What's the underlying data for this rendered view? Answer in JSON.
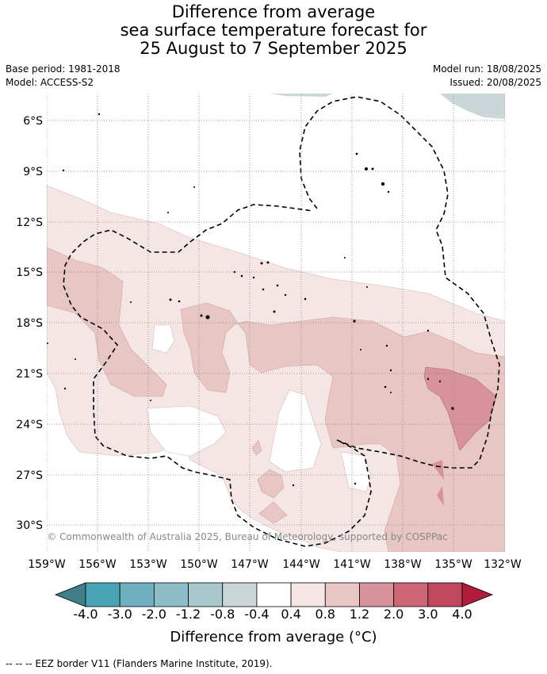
{
  "title_lines": [
    "Difference from average",
    "sea surface temperature forecast for",
    "25 August to 7 September 2025"
  ],
  "base_period": "Base period: 1981-2018",
  "model": "Model: ACCESS-S2",
  "model_run": "Model run: 18/08/2025",
  "issued": "Issued: 20/08/2025",
  "copyright": "© Commonwealth of Australia 2025, Bureau of Meteorology, supported by COSPPac",
  "lat_labels": [
    "6°S",
    "9°S",
    "12°S",
    "15°S",
    "18°S",
    "21°S",
    "24°S",
    "27°S",
    "30°S"
  ],
  "lon_labels": [
    "159°W",
    "156°W",
    "153°W",
    "150°W",
    "147°W",
    "144°W",
    "141°W",
    "138°W",
    "135°W",
    "132°W"
  ],
  "colorbar": {
    "label": "Difference from average (°C)",
    "ticks": [
      "-4.0",
      "-3.0",
      "-2.0",
      "-1.2",
      "-0.8",
      "-0.4",
      "0.4",
      "0.8",
      "1.2",
      "2.0",
      "3.0",
      "4.0"
    ],
    "colors": [
      "#3e7f8b",
      "#4aa3b5",
      "#6fb0bf",
      "#8dbdc8",
      "#a9c8cd",
      "#cbd6d8",
      "#ffffff",
      "#f4e6e5",
      "#e8c6c3",
      "#d7929a",
      "#cd6775",
      "#c0485d",
      "#b01c3c"
    ]
  },
  "eez_legend": "--  --  -- EEZ border V11 (Flanders Marine Institute, 2019)."
}
